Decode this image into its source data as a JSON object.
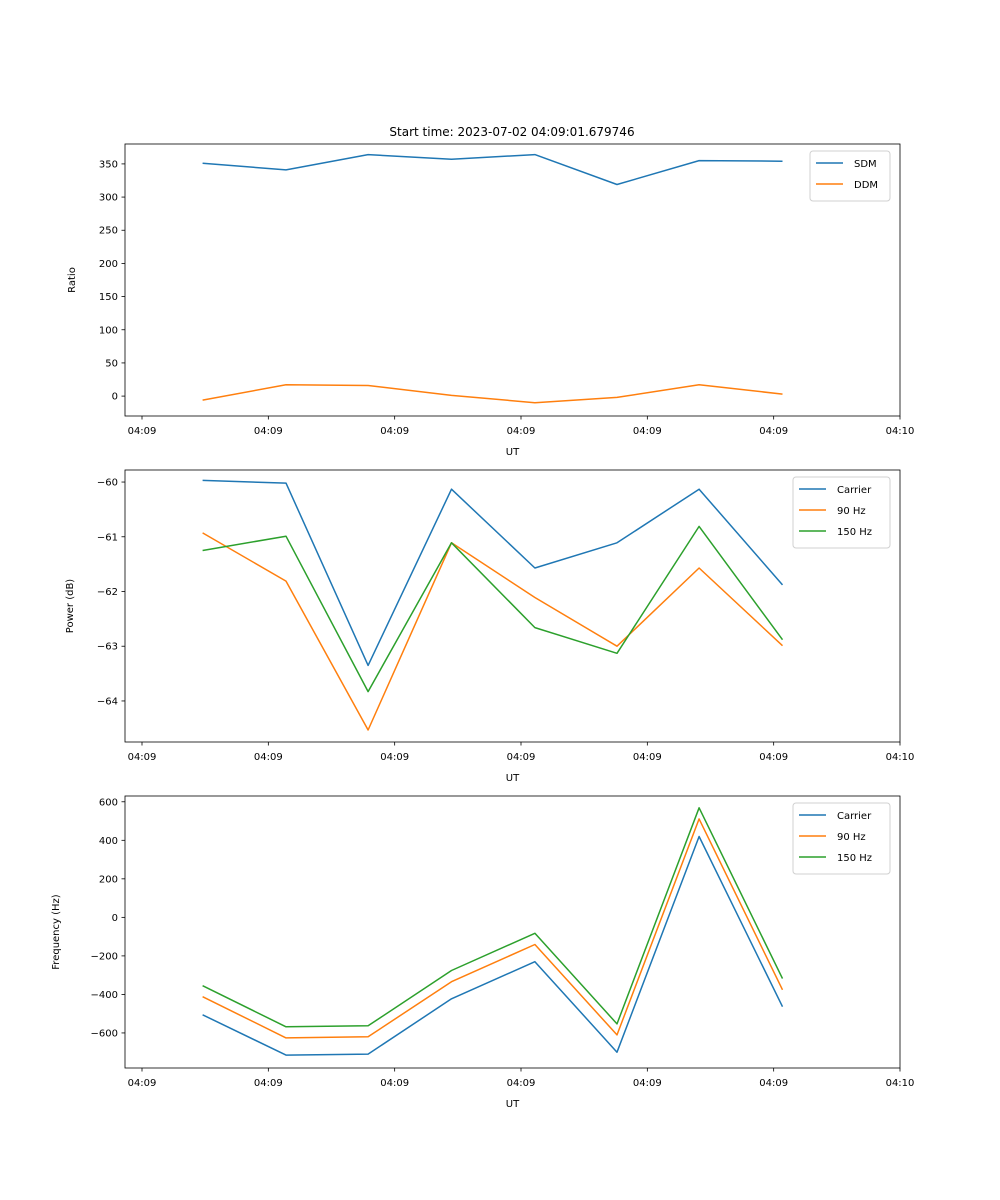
{
  "figure": {
    "title": "Start time: 2023-07-02 04:09:01.679746"
  },
  "colors": {
    "blue": "#1f77b4",
    "orange": "#ff7f0e",
    "green": "#2ca02c"
  },
  "chart_data": [
    {
      "type": "line",
      "title": "Start time: 2023-07-02 04:09:01.679746",
      "xlabel": "UT",
      "ylabel": "Ratio",
      "x_unit": "seconds after 04:09:00",
      "x": [
        4.8,
        11.4,
        17.9,
        24.5,
        31.1,
        37.6,
        44.1,
        50.7
      ],
      "xlim": [
        0,
        60
      ],
      "xticks": [
        0,
        10,
        20,
        30,
        40,
        50,
        60
      ],
      "xtick_labels": [
        "04:09",
        "04:09",
        "04:09",
        "04:09",
        "04:09",
        "04:09",
        "04:10"
      ],
      "ylim": [
        -30,
        380
      ],
      "yticks": [
        0,
        50,
        100,
        150,
        200,
        250,
        300,
        350
      ],
      "ytick_labels": [
        "0",
        "50",
        "100",
        "150",
        "200",
        "250",
        "300",
        "350"
      ],
      "grid": false,
      "legend": "top-right",
      "series": [
        {
          "name": "SDM",
          "color": "#1f77b4",
          "values": [
            351,
            341,
            364,
            357,
            364,
            319,
            355,
            354
          ]
        },
        {
          "name": "DDM",
          "color": "#ff7f0e",
          "values": [
            -6,
            17,
            16,
            1,
            -10,
            -2,
            17,
            3
          ]
        }
      ]
    },
    {
      "type": "line",
      "title": "",
      "xlabel": "UT",
      "ylabel": "Power (dB)",
      "x_unit": "seconds after 04:09:00",
      "x": [
        4.8,
        11.4,
        17.9,
        24.5,
        31.1,
        37.6,
        44.1,
        50.7
      ],
      "xlim": [
        0,
        60
      ],
      "xticks": [
        0,
        10,
        20,
        30,
        40,
        50,
        60
      ],
      "xtick_labels": [
        "04:09",
        "04:09",
        "04:09",
        "04:09",
        "04:09",
        "04:09",
        "04:10"
      ],
      "ylim": [
        -64.75,
        -59.78
      ],
      "yticks": [
        -64,
        -63,
        -62,
        -61,
        -60
      ],
      "ytick_labels": [
        "−64",
        "−63",
        "−62",
        "−61",
        "−60"
      ],
      "grid": false,
      "legend": "top-right",
      "series": [
        {
          "name": "Carrier",
          "color": "#1f77b4",
          "values": [
            -59.97,
            -60.02,
            -63.35,
            -60.13,
            -61.57,
            -61.11,
            -60.13,
            -61.88
          ]
        },
        {
          "name": "90 Hz",
          "color": "#ff7f0e",
          "values": [
            -60.93,
            -61.81,
            -64.53,
            -61.11,
            -62.11,
            -63.0,
            -61.57,
            -62.99
          ]
        },
        {
          "name": "150 Hz",
          "color": "#2ca02c",
          "values": [
            -61.25,
            -60.99,
            -63.83,
            -61.11,
            -62.66,
            -63.13,
            -60.81,
            -62.88
          ]
        }
      ]
    },
    {
      "type": "line",
      "title": "",
      "xlabel": "UT",
      "ylabel": "Frequency (Hz)",
      "x_unit": "seconds after 04:09:00",
      "x": [
        4.8,
        11.4,
        17.9,
        24.5,
        31.1,
        37.6,
        44.1,
        50.7
      ],
      "xlim": [
        0,
        60
      ],
      "xticks": [
        0,
        10,
        20,
        30,
        40,
        50,
        60
      ],
      "xtick_labels": [
        "04:09",
        "04:09",
        "04:09",
        "04:09",
        "04:09",
        "04:09",
        "04:10"
      ],
      "ylim": [
        -782,
        630
      ],
      "yticks": [
        -600,
        -400,
        -200,
        0,
        200,
        400,
        600
      ],
      "ytick_labels": [
        "−600",
        "−400",
        "−200",
        "0",
        "200",
        "400",
        "600"
      ],
      "grid": false,
      "legend": "top-right",
      "series": [
        {
          "name": "Carrier",
          "color": "#1f77b4",
          "values": [
            -506,
            -715,
            -710,
            -423,
            -230,
            -700,
            420,
            -464
          ]
        },
        {
          "name": "90 Hz",
          "color": "#ff7f0e",
          "values": [
            -412,
            -626,
            -620,
            -334,
            -141,
            -610,
            511,
            -376
          ]
        },
        {
          "name": "150 Hz",
          "color": "#2ca02c",
          "values": [
            -355,
            -568,
            -563,
            -276,
            -83,
            -553,
            569,
            -318
          ]
        }
      ]
    }
  ]
}
